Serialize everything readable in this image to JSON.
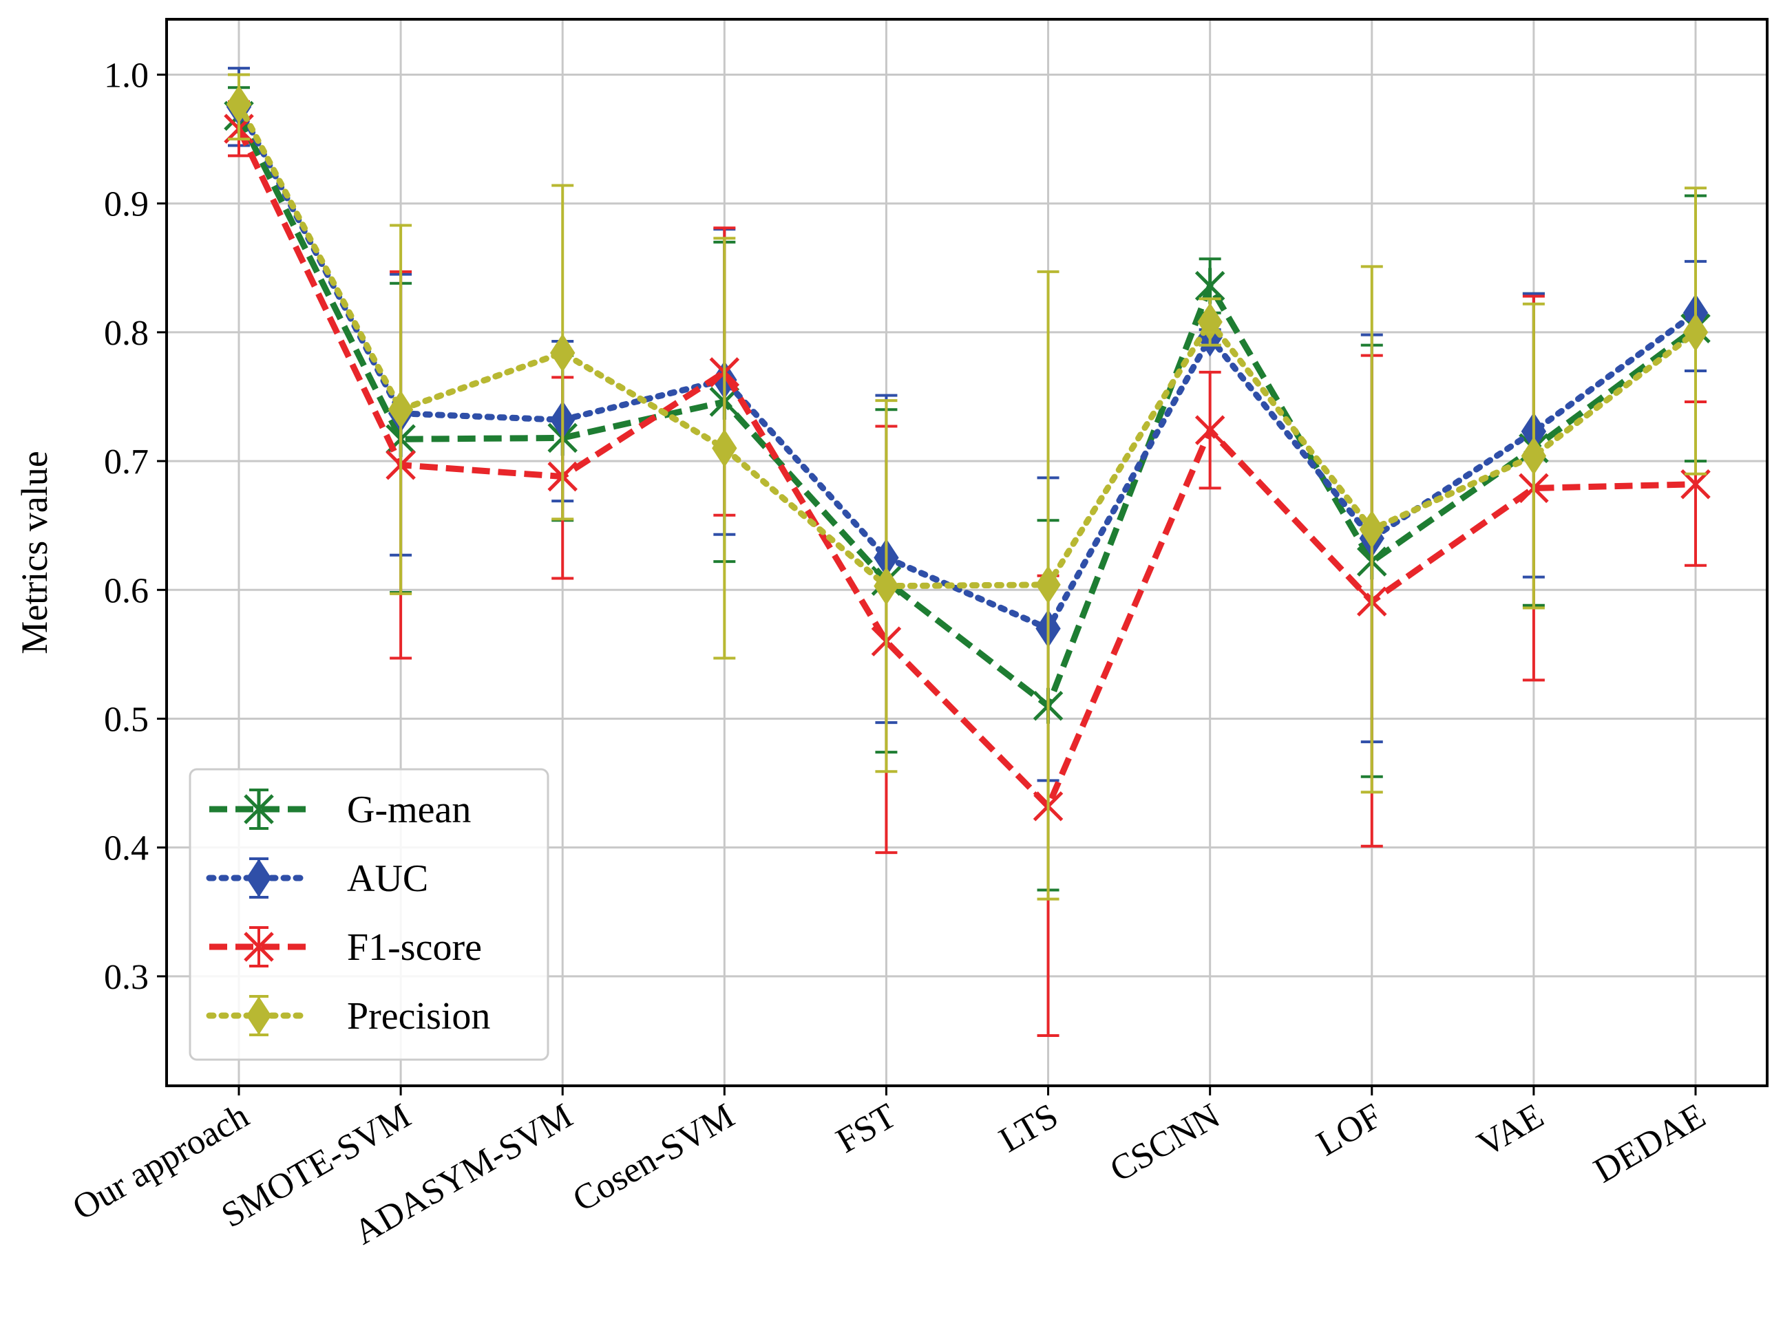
{
  "chart_data": {
    "type": "line",
    "title": "",
    "xlabel": "",
    "ylabel": "Metrics value",
    "ylim": [
      0.215,
      1.043
    ],
    "yticks": [
      0.3,
      0.4,
      0.5,
      0.6,
      0.7,
      0.8,
      0.9,
      1.0
    ],
    "ytick_labels": [
      "0.3",
      "0.4",
      "0.5",
      "0.6",
      "0.7",
      "0.8",
      "0.9",
      "1.0"
    ],
    "grid": true,
    "legend_position": "bottom-left",
    "categories": [
      "Our approach",
      "SMOTE-SVM",
      "ADASYM-SVM",
      "Cosen-SVM",
      "FST",
      "LTS",
      "CSCNN",
      "LOF",
      "VAE",
      "DEDAE"
    ],
    "series": [
      {
        "name": "G-mean",
        "color": "#1e7d32",
        "line_style": "dashed",
        "marker": "x-star",
        "values": [
          0.968,
          0.717,
          0.718,
          0.746,
          0.607,
          0.51,
          0.836,
          0.622,
          0.71,
          0.803
        ],
        "err_low": [
          0.945,
          0.598,
          0.654,
          0.622,
          0.474,
          0.367,
          0.815,
          0.455,
          0.588,
          0.7
        ],
        "err_high": [
          0.99,
          0.838,
          0.782,
          0.87,
          0.74,
          0.654,
          0.857,
          0.79,
          0.83,
          0.906
        ]
      },
      {
        "name": "AUC",
        "color": "#2f4fa8",
        "line_style": "dotted",
        "marker": "diamond",
        "values": [
          0.975,
          0.737,
          0.732,
          0.763,
          0.625,
          0.57,
          0.796,
          0.64,
          0.723,
          0.815
        ],
        "err_low": [
          0.945,
          0.627,
          0.669,
          0.643,
          0.497,
          0.452,
          0.79,
          0.482,
          0.61,
          0.77
        ],
        "err_high": [
          1.005,
          0.845,
          0.793,
          0.88,
          0.751,
          0.687,
          0.802,
          0.798,
          0.83,
          0.855
        ]
      },
      {
        "name": "F1-score",
        "color": "#e8262a",
        "line_style": "dashed",
        "marker": "x",
        "values": [
          0.958,
          0.697,
          0.688,
          0.769,
          0.56,
          0.432,
          0.724,
          0.591,
          0.679,
          0.682
        ],
        "err_low": [
          0.937,
          0.547,
          0.609,
          0.658,
          0.396,
          0.254,
          0.679,
          0.401,
          0.53,
          0.619
        ],
        "err_high": [
          0.979,
          0.847,
          0.765,
          0.881,
          0.727,
          0.611,
          0.769,
          0.782,
          0.828,
          0.746
        ]
      },
      {
        "name": "Precision",
        "color": "#b8b832",
        "line_style": "dotted",
        "marker": "diamond",
        "values": [
          0.977,
          0.74,
          0.784,
          0.71,
          0.603,
          0.604,
          0.808,
          0.647,
          0.704,
          0.8
        ],
        "err_low": [
          0.95,
          0.597,
          0.655,
          0.547,
          0.459,
          0.36,
          0.79,
          0.443,
          0.586,
          0.69
        ],
        "err_high": [
          1.0,
          0.883,
          0.914,
          0.873,
          0.747,
          0.847,
          0.826,
          0.851,
          0.822,
          0.912
        ]
      }
    ]
  }
}
